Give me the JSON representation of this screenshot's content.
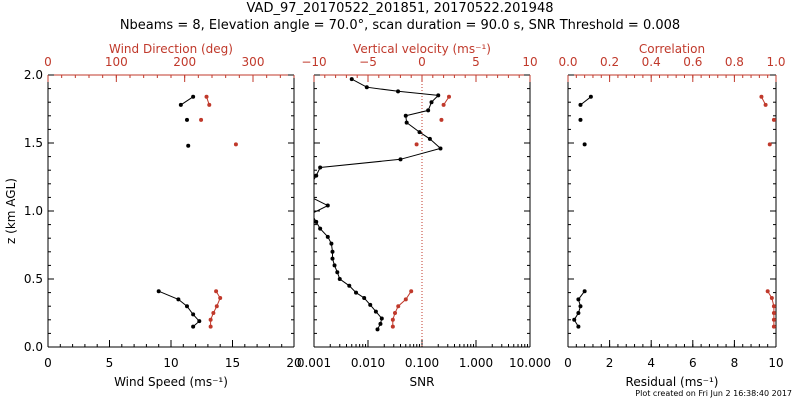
{
  "figure": {
    "title_line1": "VAD_97_20170522_201851, 20170522.201948",
    "title_line2": "Nbeams = 8, Elevation angle = 70.0°, scan duration = 90.0 s, SNR Threshold = 0.008",
    "footer": "Plot created on Fri Jun  2 16:38:40 2017",
    "colors": {
      "primary": "#000000",
      "secondary": "#c0392b"
    }
  },
  "chart_data": [
    {
      "type": "line",
      "ylabel": "z (km AGL)",
      "ylim": [
        0,
        2.0
      ],
      "yticks": [
        "0.0",
        "0.5",
        "1.0",
        "1.5",
        "2.0"
      ],
      "bottom_axis": {
        "label": "Wind Speed (ms⁻¹)",
        "lim": [
          0,
          20
        ],
        "ticks": [
          "0",
          "5",
          "10",
          "15",
          "20"
        ]
      },
      "top_axis": {
        "label": "Wind Direction (deg)",
        "lim": [
          0,
          360
        ],
        "ticks": [
          "0",
          "100",
          "200",
          "300"
        ]
      },
      "series": [
        {
          "axis": "bottom",
          "style": "line+markers",
          "color": "#000000",
          "segments": [
            [
              [
                9.0,
                0.41
              ],
              [
                10.6,
                0.35
              ],
              [
                11.3,
                0.3
              ],
              [
                11.8,
                0.24
              ],
              [
                12.3,
                0.19
              ],
              [
                11.8,
                0.15
              ]
            ],
            [
              [
                10.8,
                1.78
              ],
              [
                11.8,
                1.84
              ]
            ]
          ],
          "points": [
            [
              11.3,
              1.67
            ],
            [
              11.4,
              1.48
            ]
          ]
        },
        {
          "axis": "top",
          "style": "line+markers",
          "color": "#c0392b",
          "segments": [
            [
              [
                246,
                0.41
              ],
              [
                252,
                0.36
              ],
              [
                247,
                0.3
              ],
              [
                242,
                0.25
              ],
              [
                238,
                0.2
              ],
              [
                238,
                0.15
              ]
            ],
            [
              [
                232,
                1.84
              ],
              [
                236,
                1.78
              ]
            ]
          ],
          "points": [
            [
              224,
              1.67
            ],
            [
              275,
              1.49
            ]
          ]
        }
      ]
    },
    {
      "type": "line",
      "bottom_axis": {
        "label": "SNR",
        "scale": "log",
        "lim": [
          0.001,
          10
        ],
        "ticks": [
          "0.001",
          "0.010",
          "0.100",
          "1.000",
          "10.000"
        ]
      },
      "top_axis": {
        "label": "Vertical velocity (ms⁻¹)",
        "lim": [
          -10,
          10
        ],
        "ticks": [
          "−10",
          "−5",
          "0",
          "5",
          "10"
        ],
        "zero_line": "dotted"
      },
      "series": [
        {
          "axis": "bottom",
          "style": "line+markers",
          "color": "#000000",
          "points": [
            [
              0.005,
              1.97
            ],
            [
              0.0095,
              1.91
            ],
            [
              0.036,
              1.88
            ],
            [
              0.2,
              1.85
            ],
            [
              0.15,
              1.8
            ],
            [
              0.13,
              1.74
            ],
            [
              0.05,
              1.7
            ],
            [
              0.052,
              1.65
            ],
            [
              0.09,
              1.58
            ],
            [
              0.14,
              1.53
            ],
            [
              0.22,
              1.46
            ],
            [
              0.04,
              1.38
            ],
            [
              0.0013,
              1.32
            ],
            [
              0.0011,
              1.26
            ],
            [
              0.0009,
              1.2
            ],
            [
              0.0009,
              1.1
            ],
            [
              0.0018,
              1.04
            ],
            [
              0.0009,
              0.98
            ],
            [
              0.0011,
              0.92
            ],
            [
              0.0013,
              0.87
            ],
            [
              0.0018,
              0.81
            ],
            [
              0.0021,
              0.76
            ],
            [
              0.0022,
              0.7
            ],
            [
              0.0022,
              0.65
            ],
            [
              0.0024,
              0.6
            ],
            [
              0.0027,
              0.55
            ],
            [
              0.003,
              0.5
            ],
            [
              0.0045,
              0.45
            ],
            [
              0.006,
              0.4
            ],
            [
              0.0085,
              0.36
            ],
            [
              0.011,
              0.31
            ],
            [
              0.014,
              0.26
            ],
            [
              0.018,
              0.21
            ],
            [
              0.017,
              0.17
            ],
            [
              0.015,
              0.13
            ]
          ]
        },
        {
          "axis": "top",
          "style": "line+markers",
          "color": "#c0392b",
          "segments": [
            [
              [
                -1.0,
                0.41
              ],
              [
                -1.5,
                0.35
              ],
              [
                -2.2,
                0.3
              ],
              [
                -2.5,
                0.25
              ],
              [
                -2.7,
                0.2
              ],
              [
                -2.7,
                0.15
              ]
            ],
            [
              [
                2.5,
                1.84
              ],
              [
                2.0,
                1.78
              ]
            ]
          ],
          "points": [
            [
              1.8,
              1.67
            ],
            [
              -0.5,
              1.49
            ]
          ]
        }
      ]
    },
    {
      "type": "line",
      "bottom_axis": {
        "label": "Residual (ms⁻¹)",
        "lim": [
          0,
          10
        ],
        "ticks": [
          "0",
          "2",
          "4",
          "6",
          "8",
          "10"
        ]
      },
      "top_axis": {
        "label": "Correlation",
        "lim": [
          0,
          1.0
        ],
        "ticks": [
          "0.0",
          "0.2",
          "0.4",
          "0.6",
          "0.8",
          "1.0"
        ]
      },
      "series": [
        {
          "axis": "bottom",
          "style": "line+markers",
          "color": "#000000",
          "segments": [
            [
              [
                0.8,
                0.41
              ],
              [
                0.5,
                0.35
              ],
              [
                0.6,
                0.3
              ],
              [
                0.5,
                0.25
              ],
              [
                0.3,
                0.2
              ],
              [
                0.5,
                0.15
              ]
            ],
            [
              [
                0.6,
                1.78
              ],
              [
                1.1,
                1.84
              ]
            ]
          ],
          "points": [
            [
              0.6,
              1.67
            ],
            [
              0.8,
              1.49
            ]
          ]
        },
        {
          "axis": "top",
          "style": "line+markers",
          "color": "#c0392b",
          "segments": [
            [
              [
                0.96,
                0.41
              ],
              [
                0.98,
                0.36
              ],
              [
                0.99,
                0.3
              ],
              [
                0.99,
                0.25
              ],
              [
                0.99,
                0.2
              ],
              [
                0.99,
                0.15
              ]
            ],
            [
              [
                0.93,
                1.84
              ],
              [
                0.95,
                1.78
              ]
            ]
          ],
          "points": [
            [
              0.99,
              1.67
            ],
            [
              0.97,
              1.49
            ]
          ]
        }
      ]
    }
  ]
}
